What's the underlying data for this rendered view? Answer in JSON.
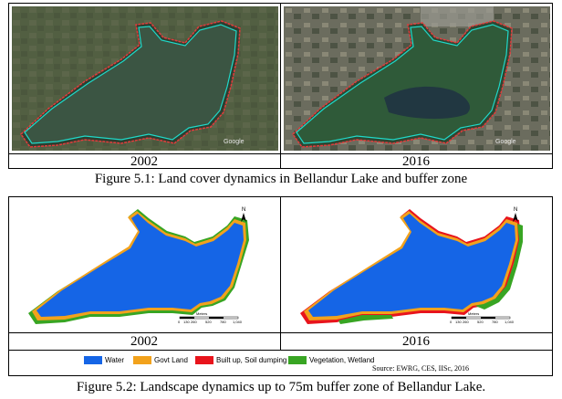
{
  "figure1": {
    "left_year": "2002",
    "right_year": "2016",
    "caption": "Figure 5.1: Land cover dynamics in Bellandur Lake and buffer zone",
    "watermark": "Google",
    "colors": {
      "outline": "#1fd9c9",
      "buffer": "#e23b3b"
    }
  },
  "figure2": {
    "left_year": "2002",
    "right_year": "2016",
    "caption": "Figure 5.2: Landscape dynamics up to 75m buffer zone of Bellandur Lake.",
    "north_label": "N",
    "scale_unit": "Meters",
    "scale_ticks": [
      "0",
      "130",
      "260",
      "520",
      "780",
      "1,040"
    ],
    "legend": [
      {
        "label": "Water",
        "color": "#1565e6"
      },
      {
        "label": "Govt Land",
        "color": "#f2a21c"
      },
      {
        "label": "Built up, Soil dumping",
        "color": "#e8141c"
      },
      {
        "label": "Vegetation, Wetland",
        "color": "#38a523"
      }
    ],
    "source": "Source: EWRG, CES, IISc, 2016"
  }
}
